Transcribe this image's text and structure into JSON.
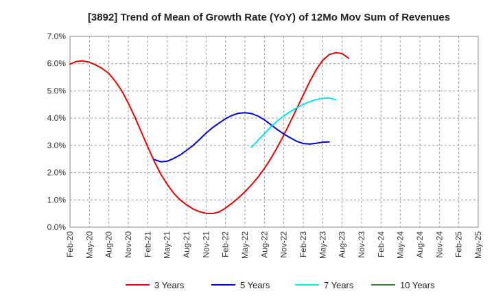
{
  "chart_data": {
    "type": "line",
    "title": "[3892]  Trend of Mean of Growth Rate (YoY) of 12Mo Mov Sum of Revenues",
    "xlabel": "",
    "ylabel": "",
    "ylim": [
      0,
      7
    ],
    "y_ticks": [
      "0.0%",
      "1.0%",
      "2.0%",
      "3.0%",
      "4.0%",
      "5.0%",
      "6.0%",
      "7.0%"
    ],
    "x_ticks": [
      "Feb-20",
      "May-20",
      "Aug-20",
      "Nov-20",
      "Feb-21",
      "May-21",
      "Aug-21",
      "Nov-21",
      "Feb-22",
      "May-22",
      "Aug-22",
      "Nov-22",
      "Feb-23",
      "May-23",
      "Aug-23",
      "Nov-23",
      "Feb-24",
      "May-24",
      "Aug-24",
      "Nov-24",
      "Feb-25",
      "May-25"
    ],
    "grid": true,
    "legend_position": "bottom",
    "series": [
      {
        "name": "3 Years",
        "color": "#e00000",
        "start_index": 0,
        "values": [
          5.98,
          6.08,
          6.1,
          6.05,
          5.95,
          5.82,
          5.64,
          5.35,
          5.0,
          4.55,
          4.05,
          3.5,
          2.95,
          2.42,
          1.95,
          1.58,
          1.25,
          1.0,
          0.82,
          0.67,
          0.57,
          0.51,
          0.5,
          0.56,
          0.7,
          0.88,
          1.08,
          1.3,
          1.55,
          1.83,
          2.15,
          2.52,
          2.93,
          3.38,
          3.86,
          4.35,
          4.85,
          5.34,
          5.78,
          6.12,
          6.33,
          6.4,
          6.37,
          6.2
        ]
      },
      {
        "name": "5 Years",
        "color": "#0000cc",
        "start_index": 13,
        "values": [
          2.48,
          2.4,
          2.42,
          2.52,
          2.65,
          2.82,
          3.0,
          3.22,
          3.45,
          3.65,
          3.82,
          3.98,
          4.1,
          4.18,
          4.2,
          4.17,
          4.08,
          3.94,
          3.76,
          3.58,
          3.42,
          3.28,
          3.15,
          3.07,
          3.05,
          3.08,
          3.12,
          3.13
        ]
      },
      {
        "name": "7 Years",
        "color": "#00e5ee",
        "start_index": 28,
        "values": [
          2.93,
          3.18,
          3.43,
          3.68,
          3.9,
          4.08,
          4.24,
          4.38,
          4.5,
          4.6,
          4.68,
          4.73,
          4.74,
          4.68
        ]
      },
      {
        "name": "10 Years",
        "color": "#228b22",
        "start_index": 0,
        "values": []
      }
    ]
  }
}
